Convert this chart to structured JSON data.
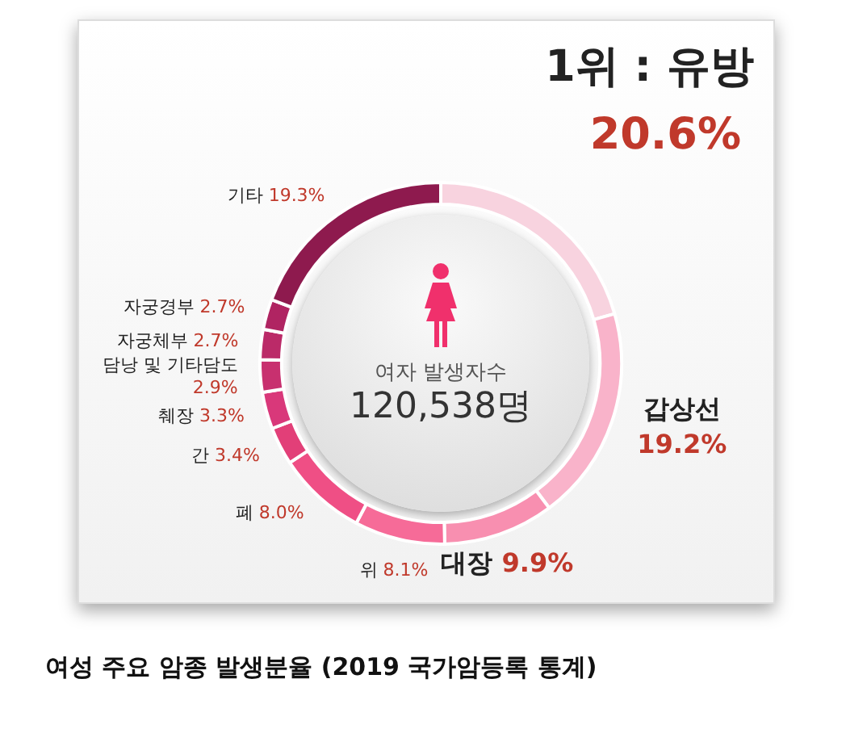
{
  "chart_data": {
    "type": "donut",
    "title": "여성 주요 암종 발생분율 (2019 국가암등록 통계)",
    "categories": [
      "유방",
      "갑상선",
      "대장",
      "위",
      "폐",
      "간",
      "췌장",
      "담낭 및 기타담도",
      "자궁체부",
      "자궁경부",
      "기타"
    ],
    "values": [
      20.6,
      19.2,
      9.9,
      8.1,
      8.0,
      3.4,
      3.3,
      2.9,
      2.7,
      2.7,
      19.3
    ],
    "value_labels": [
      "20.6%",
      "19.2%",
      "9.9%",
      "8.1%",
      "8.0%",
      "3.4%",
      "3.3%",
      "2.9%",
      "2.7%",
      "2.7%",
      "19.3%"
    ],
    "colors": [
      "#f8d3df",
      "#f9b3ca",
      "#f88fb0",
      "#f66b98",
      "#ef4f85",
      "#e23f78",
      "#d9387a",
      "#c8306f",
      "#bb2a68",
      "#b02462",
      "#8e1a4e"
    ],
    "annotations": [
      "1위 :",
      "여자 발생자수",
      "120,538명"
    ],
    "legend": false
  }
}
